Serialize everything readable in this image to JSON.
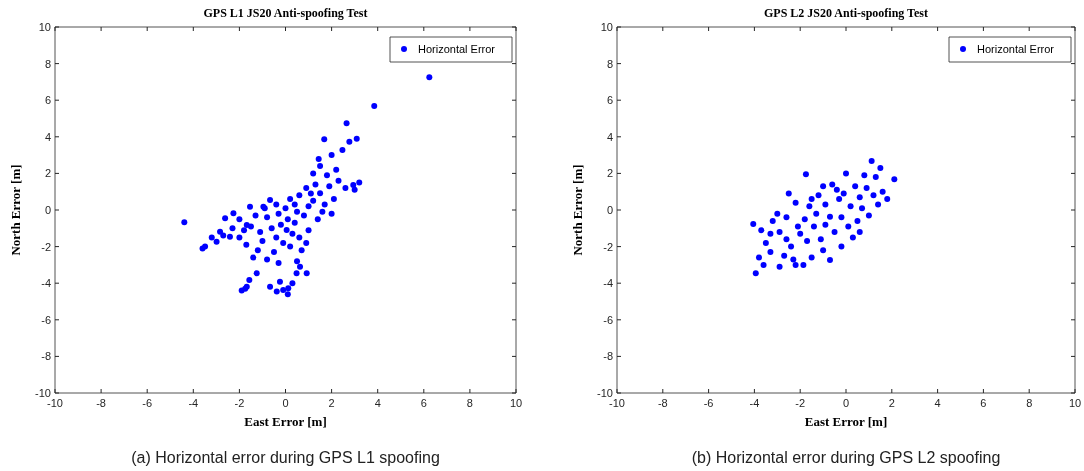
{
  "chart_data": [
    {
      "type": "scatter",
      "title": "GPS L1 JS20 Anti-spoofing Test",
      "xlabel": "East Error [m]",
      "ylabel": "North Error [m]",
      "annotations": [
        "(a) Horizontal error during GPS L1 spoofing"
      ],
      "xlim": [
        -10,
        10
      ],
      "ylim": [
        -10,
        10
      ],
      "xticks": [
        -10,
        -8,
        -6,
        -4,
        -2,
        0,
        2,
        4,
        6,
        8,
        10
      ],
      "yticks": [
        -10,
        -8,
        -6,
        -4,
        -2,
        0,
        2,
        4,
        6,
        8,
        10
      ],
      "legend": "top right",
      "marker": "circle",
      "grid": false,
      "x": [
        6.24,
        3.85,
        2.65,
        1.68,
        2.77,
        3.09,
        2.47,
        2.0,
        1.44,
        -4.39,
        2.94,
        3.2,
        2.6,
        2.3,
        3.0,
        2.1,
        1.8,
        2.2,
        1.5,
        1.2,
        1.9,
        1.5,
        1.2,
        1.7,
        0.9,
        1.3,
        0.6,
        1.0,
        1.6,
        0.8,
        1.1,
        0.4,
        0.2,
        0.5,
        1.4,
        2.0,
        0.05,
        -0.2,
        0.3,
        -0.4,
        0.1,
        -0.6,
        0.4,
        -0.1,
        0.6,
        -0.8,
        -0.3,
        0.2,
        -0.5,
        0.7,
        -1.0,
        -1.2,
        -0.8,
        -1.4,
        -0.3,
        0.5,
        0.9,
        1.0,
        -1.1,
        -1.5,
        -1.8,
        -1.3,
        -0.9,
        -0.4,
        0.0,
        -1.7,
        -2.0,
        -3.49,
        -2.99,
        -2.84,
        -2.62,
        -2.26,
        -2.41,
        -1.68,
        -1.54,
        -0.96,
        -0.67,
        -3.2,
        -3.6,
        -2.7,
        -2.0,
        -2.3,
        -1.68,
        -1.75,
        -1.57,
        -0.24,
        -0.1,
        -0.38,
        0.12,
        0.48,
        0.92,
        0.63,
        -1.25,
        -0.67,
        0.1,
        -1.9,
        0.3
      ],
      "series": [
        {
          "name": "Horizontal Error",
          "color": "#0000ff",
          "values": [
            7.25,
            5.68,
            4.74,
            3.86,
            3.73,
            3.9,
            3.28,
            3.0,
            2.79,
            -0.67,
            1.37,
            1.5,
            1.2,
            1.6,
            1.1,
            0.6,
            1.9,
            2.2,
            2.4,
            2.0,
            1.3,
            0.91,
            0.5,
            0.3,
            1.2,
            1.4,
            0.8,
            0.2,
            -0.1,
            -0.3,
            0.9,
            0.3,
            0.6,
            -0.1,
            -0.5,
            -0.2,
            -1.09,
            -0.8,
            -1.3,
            -1.5,
            -0.5,
            -1.0,
            -0.7,
            -1.8,
            -1.5,
            -0.4,
            -0.2,
            -2.0,
            -2.3,
            -2.2,
            -1.7,
            -2.2,
            -2.7,
            -2.6,
            -2.9,
            -2.8,
            -1.8,
            -1.1,
            -1.2,
            -0.9,
            -1.1,
            -0.3,
            0.1,
            0.3,
            0.1,
            -1.9,
            -1.5,
            -2.0,
            -1.73,
            -1.19,
            -0.45,
            -0.18,
            -1.46,
            -0.82,
            0.18,
            0.18,
            0.55,
            -1.5,
            -2.1,
            -1.4,
            -0.5,
            -1.0,
            -4.19,
            -4.3,
            -3.83,
            -3.92,
            -4.37,
            -4.46,
            -4.28,
            -3.46,
            -3.46,
            -3.1,
            -3.46,
            -4.19,
            -4.6,
            -4.4,
            -4.0
          ]
        }
      ]
    },
    {
      "type": "scatter",
      "title": "GPS L2 JS20 Anti-spoofing Test",
      "xlabel": "East Error [m]",
      "ylabel": "North Error [m]",
      "annotations": [
        "(b) Horizontal error during GPS L2 spoofing"
      ],
      "xlim": [
        -10,
        10
      ],
      "ylim": [
        -10,
        10
      ],
      "xticks": [
        -10,
        -8,
        -6,
        -4,
        -2,
        0,
        2,
        4,
        6,
        8,
        10
      ],
      "yticks": [
        -10,
        -8,
        -6,
        -4,
        -2,
        0,
        2,
        4,
        6,
        8,
        10
      ],
      "legend": "top right",
      "marker": "circle",
      "grid": false,
      "x": [
        -3.94,
        -3.6,
        -3.8,
        -3.3,
        -2.9,
        -3.5,
        -4.05,
        -3.7,
        -3.2,
        -2.9,
        -2.6,
        -2.4,
        -2.7,
        -2.2,
        -1.86,
        -1.5,
        -0.7,
        -1.0,
        -2.0,
        -1.8,
        -1.6,
        -2.2,
        -1.75,
        -2.5,
        -1.2,
        -1.4,
        -1.1,
        -0.7,
        -0.5,
        -0.9,
        -0.3,
        -0.6,
        -1.0,
        -0.2,
        0.1,
        0.3,
        -0.2,
        0.5,
        0.2,
        0.6,
        0.9,
        1.12,
        1.3,
        0.8,
        1.6,
        2.11,
        1.8,
        1.4,
        1.0,
        0.4,
        0.0,
        -0.4,
        -1.3,
        -2.1,
        -3.0,
        -2.6,
        -1.7,
        -0.9,
        0.6,
        1.2,
        1.5,
        0.7,
        -0.1,
        -1.5,
        -3.3,
        -2.3
      ],
      "series": [
        {
          "name": "Horizontal Error",
          "color": "#0000ff",
          "values": [
            -3.46,
            -3.0,
            -2.6,
            -2.3,
            -3.1,
            -1.8,
            -0.77,
            -1.1,
            -0.6,
            -1.2,
            -0.4,
            -2.0,
            -2.5,
            -3.0,
            -3.0,
            -2.6,
            -2.73,
            -2.2,
            -1.3,
            -0.5,
            0.2,
            0.4,
            1.95,
            0.9,
            0.8,
            -0.9,
            -1.6,
            -0.37,
            -1.2,
            0.3,
            0.6,
            1.4,
            1.3,
            -0.4,
            -0.9,
            -1.5,
            -2.0,
            -0.6,
            0.2,
            0.7,
            1.2,
            2.68,
            1.8,
            1.9,
            1.0,
            1.68,
            0.6,
            0.3,
            -0.3,
            1.3,
            2.0,
            1.1,
            -0.2,
            -0.9,
            -0.2,
            -1.6,
            -1.7,
            -0.8,
            -1.2,
            0.8,
            2.3,
            0.1,
            0.9,
            0.6,
            -1.3,
            -2.7
          ]
        }
      ]
    }
  ]
}
